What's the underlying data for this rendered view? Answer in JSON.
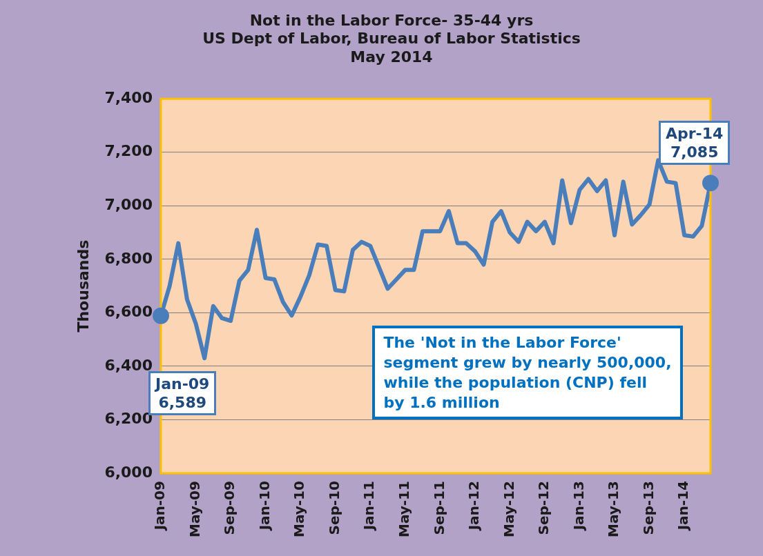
{
  "chart_data": {
    "type": "line",
    "title": "Not in the Labor Force- 35-44 yrs\nUS Dept of Labor, Bureau of Labor Statistics\nMay 2014",
    "ylabel": "Thousands",
    "categories": [
      "Jan-09",
      null,
      null,
      null,
      "May-09",
      null,
      null,
      null,
      "Sep-09",
      null,
      null,
      null,
      "Jan-10",
      null,
      null,
      null,
      "May-10",
      null,
      null,
      null,
      "Sep-10",
      null,
      null,
      null,
      "Jan-11",
      null,
      null,
      null,
      "May-11",
      null,
      null,
      null,
      "Sep-11",
      null,
      null,
      null,
      "Jan-12",
      null,
      null,
      null,
      "May-12",
      null,
      null,
      null,
      "Sep-12",
      null,
      null,
      null,
      "Jan-13",
      null,
      null,
      null,
      "May-13",
      null,
      null,
      null,
      "Sep-13",
      null,
      null,
      null,
      "Jan-14",
      null,
      null,
      null
    ],
    "series": [
      {
        "color": "#4a7ebb",
        "values": [
          6589,
          6700,
          6860,
          6650,
          6560,
          6430,
          6625,
          6580,
          6570,
          6720,
          6760,
          6910,
          6730,
          6725,
          6640,
          6590,
          6660,
          6740,
          6855,
          6850,
          6685,
          6680,
          6835,
          6865,
          6850,
          6770,
          6690,
          6725,
          6760,
          6760,
          6905,
          6905,
          6905,
          6980,
          6860,
          6860,
          6830,
          6780,
          6940,
          6980,
          6900,
          6865,
          6940,
          6905,
          6940,
          6860,
          7095,
          6935,
          7060,
          7100,
          7055,
          7095,
          6890,
          7090,
          6930,
          6965,
          7005,
          7170,
          7090,
          7085,
          6890,
          6885,
          6925,
          7085
        ]
      }
    ],
    "ylim": [
      6000,
      7400
    ],
    "yticks": [
      {
        "value": 6000,
        "label": "6,000"
      },
      {
        "value": 6200,
        "label": "6,200"
      },
      {
        "value": 6400,
        "label": "6,400"
      },
      {
        "value": 6600,
        "label": "6,600"
      },
      {
        "value": 6800,
        "label": "6,800"
      },
      {
        "value": 7000,
        "label": "7,000"
      },
      {
        "value": 7200,
        "label": "7,200"
      },
      {
        "value": 7400,
        "label": "7,400"
      }
    ],
    "grid": "y",
    "legend": false,
    "marker": "none",
    "line_style": "solid",
    "annotations": [
      "Jan-09\n6,589",
      "Apr-14\n7,085",
      "The 'Not in the  Labor Force' segment grew by nearly 500,000, while the population (CNP) fell by 1.6 million"
    ]
  }
}
